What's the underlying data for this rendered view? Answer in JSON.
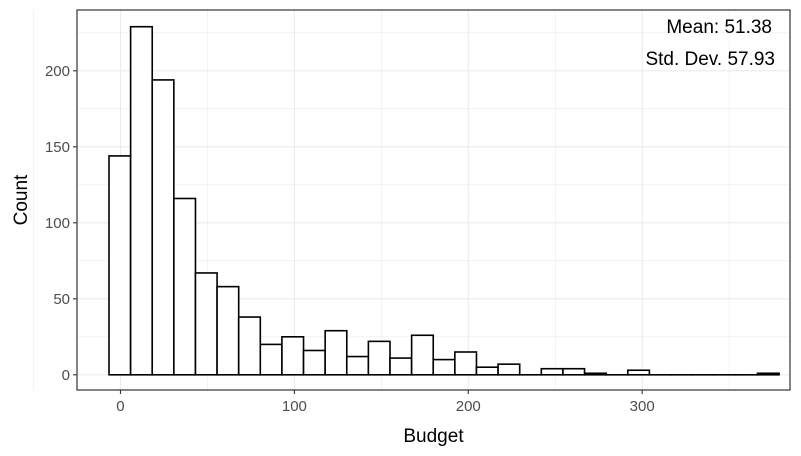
{
  "chart_data": {
    "type": "bar",
    "subtype": "histogram",
    "xlabel": "Budget",
    "ylabel": "Count",
    "xlim": [
      -25,
      385
    ],
    "ylim": [
      -10,
      240
    ],
    "x_ticks": [
      0,
      100,
      200,
      300
    ],
    "y_ticks": [
      0,
      50,
      100,
      150,
      200
    ],
    "grid": true,
    "bin_width": 12.43,
    "bin_start": -6.6,
    "counts": [
      144,
      229,
      194,
      116,
      67,
      58,
      38,
      20,
      25,
      16,
      29,
      12,
      22,
      11,
      26,
      10,
      15,
      5,
      7,
      0,
      4,
      4,
      1,
      0,
      3,
      0,
      0,
      0,
      0,
      0,
      1
    ],
    "annotations": [
      "Mean: 51.38",
      "Std. Dev. 57.93"
    ],
    "colors": {
      "bar_fill": "#ffffff",
      "bar_stroke": "#000000",
      "grid": "#ebebeb",
      "panel_border": "#333333"
    }
  }
}
